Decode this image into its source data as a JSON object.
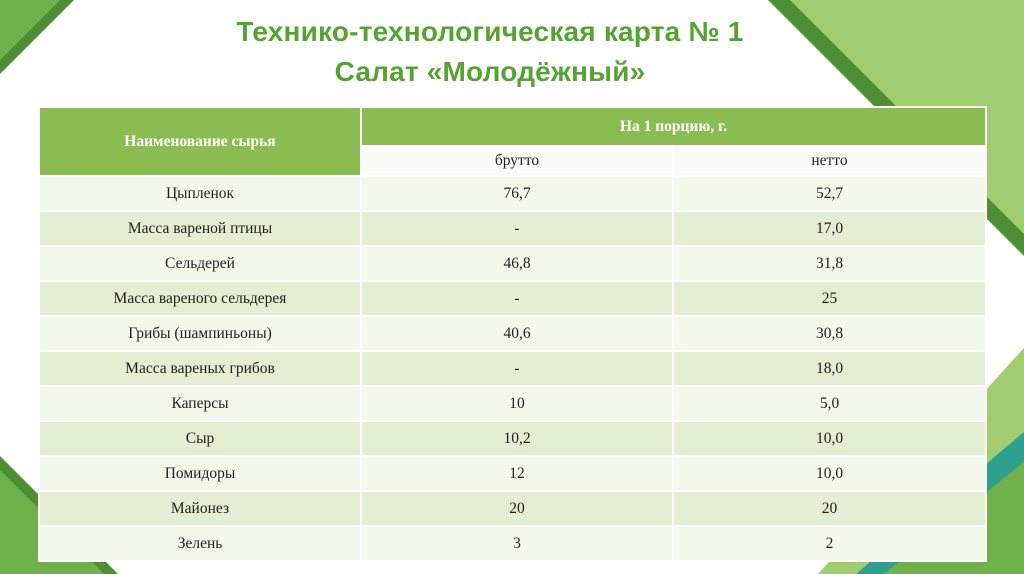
{
  "slide": {
    "title_line1": "Технико-технологическая карта № 1",
    "title_line2": "Салат «Молодёжный»"
  },
  "table": {
    "col_header": "Наименование сырья",
    "group_header": "На 1 порцию, г.",
    "sub_headers": [
      "брутто",
      "нетто"
    ],
    "rows": [
      {
        "name": "Цыпленок",
        "brutto": "76,7",
        "netto": "52,7"
      },
      {
        "name": "Масса вареной птицы",
        "brutto": "-",
        "netto": "17,0"
      },
      {
        "name": "Сельдерей",
        "brutto": "46,8",
        "netto": "31,8"
      },
      {
        "name": "Масса вареного сельдерея",
        "brutto": "-",
        "netto": "25"
      },
      {
        "name": "Грибы (шампиньоны)",
        "brutto": "40,6",
        "netto": "30,8"
      },
      {
        "name": "Масса вареных грибов",
        "brutto": "-",
        "netto": "18,0"
      },
      {
        "name": "Каперсы",
        "brutto": "10",
        "netto": "5,0"
      },
      {
        "name": "Сыр",
        "brutto": "10,2",
        "netto": "10,0"
      },
      {
        "name": "Помидоры",
        "brutto": "12",
        "netto": "10,0"
      },
      {
        "name": "Майонез",
        "brutto": "20",
        "netto": "20"
      },
      {
        "name": "Зелень",
        "brutto": "3",
        "netto": "2"
      }
    ]
  },
  "colors": {
    "title_green": "#56a332",
    "header_green": "#8abc52",
    "band_green": "#e3eed2",
    "row_green": "#f3f8ec",
    "subhead_bg": "#fbfcf8",
    "corner_dark": "#4f8f33",
    "corner_mid": "#6fb14a",
    "corner_light": "#a2cc70",
    "teal": "#2fa08e"
  }
}
